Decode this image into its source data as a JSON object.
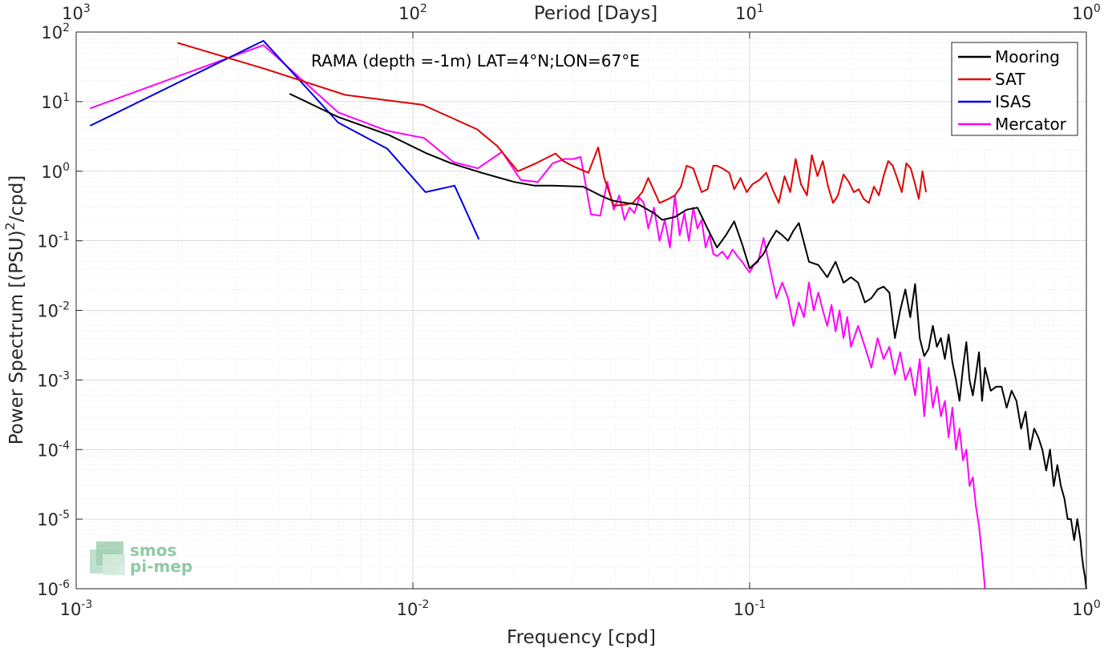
{
  "chart_data": {
    "type": "line",
    "x_scale": "log",
    "y_scale": "log",
    "xlim": [
      0.001,
      1
    ],
    "ylim": [
      1e-06,
      100
    ],
    "xlabel": "Frequency [cpd]",
    "ylabel": "Power Spectrum [(PSU)^2/cpd]",
    "top_xlabel": "Period [Days]",
    "annotation": "RAMA (depth =-1m) LAT=4°N;LON=67°E",
    "grid": true,
    "legend_position": "top-right",
    "x_ticks": [
      0.001,
      0.01,
      0.1,
      1
    ],
    "y_ticks": [
      1e-06,
      1e-05,
      0.0001,
      0.001,
      0.01,
      0.1,
      1,
      10,
      100
    ],
    "top_ticks": [
      1000,
      100,
      10,
      1
    ],
    "series": [
      {
        "name": "Mooring",
        "color": "#000000",
        "x": [
          0.0043,
          0.006,
          0.0085,
          0.011,
          0.013,
          0.016,
          0.02,
          0.023,
          0.026,
          0.032,
          0.036,
          0.039,
          0.043,
          0.047,
          0.052,
          0.055,
          0.06,
          0.065,
          0.07,
          0.075,
          0.08,
          0.085,
          0.09,
          0.095,
          0.1,
          0.105,
          0.11,
          0.115,
          0.12,
          0.125,
          0.13,
          0.135,
          0.14,
          0.15,
          0.16,
          0.17,
          0.18,
          0.19,
          0.2,
          0.21,
          0.22,
          0.23,
          0.24,
          0.25,
          0.26,
          0.27,
          0.28,
          0.29,
          0.3,
          0.31,
          0.32,
          0.33,
          0.34,
          0.35,
          0.36,
          0.37,
          0.38,
          0.39,
          0.4,
          0.41,
          0.42,
          0.43,
          0.44,
          0.45,
          0.46,
          0.47,
          0.48,
          0.49,
          0.5,
          0.52,
          0.54,
          0.56,
          0.58,
          0.6,
          0.62,
          0.64,
          0.66,
          0.68,
          0.7,
          0.72,
          0.74,
          0.76,
          0.78,
          0.8,
          0.82,
          0.84,
          0.86,
          0.88,
          0.9,
          0.92,
          0.94,
          0.96,
          0.97,
          0.98,
          0.99,
          1.0
        ],
        "y": [
          13,
          6,
          3.3,
          1.8,
          1.3,
          0.95,
          0.7,
          0.62,
          0.62,
          0.6,
          0.45,
          0.38,
          0.35,
          0.33,
          0.25,
          0.2,
          0.22,
          0.28,
          0.3,
          0.15,
          0.08,
          0.12,
          0.19,
          0.09,
          0.04,
          0.05,
          0.065,
          0.1,
          0.14,
          0.12,
          0.1,
          0.14,
          0.18,
          0.05,
          0.045,
          0.03,
          0.05,
          0.025,
          0.03,
          0.025,
          0.013,
          0.015,
          0.02,
          0.022,
          0.018,
          0.004,
          0.01,
          0.02,
          0.008,
          0.024,
          0.004,
          0.0022,
          0.0028,
          0.006,
          0.003,
          0.004,
          0.002,
          0.0045,
          0.0018,
          0.001,
          0.0005,
          0.0015,
          0.0035,
          0.001,
          0.0006,
          0.0012,
          0.0025,
          0.0005,
          0.0015,
          0.0007,
          0.0008,
          0.0008,
          0.0004,
          0.0007,
          0.0005,
          0.0002,
          0.00035,
          0.0001,
          0.0002,
          0.00015,
          0.0001,
          5e-05,
          0.0001,
          3e-05,
          6e-05,
          3e-05,
          2e-05,
          1e-05,
          1e-05,
          5e-06,
          1e-05,
          5e-06,
          3e-06,
          2e-06,
          1.5e-06,
          1e-06
        ]
      },
      {
        "name": "SAT",
        "color": "#e00000",
        "x": [
          0.002,
          0.0036,
          0.0063,
          0.0107,
          0.0155,
          0.0178,
          0.0205,
          0.0232,
          0.0265,
          0.028,
          0.0297,
          0.0332,
          0.0355,
          0.037,
          0.0395,
          0.0425,
          0.045,
          0.048,
          0.05,
          0.054,
          0.0575,
          0.06,
          0.0625,
          0.065,
          0.068,
          0.072,
          0.075,
          0.078,
          0.08,
          0.083,
          0.087,
          0.09,
          0.094,
          0.098,
          0.102,
          0.107,
          0.112,
          0.117,
          0.122,
          0.127,
          0.132,
          0.137,
          0.142,
          0.148,
          0.153,
          0.159,
          0.165,
          0.171,
          0.177,
          0.183,
          0.19,
          0.197,
          0.204,
          0.211,
          0.218,
          0.226,
          0.234,
          0.242,
          0.25,
          0.258,
          0.266,
          0.274,
          0.283,
          0.292,
          0.301,
          0.31,
          0.318,
          0.326,
          0.334
        ],
        "y": [
          70,
          30,
          12.5,
          9,
          4,
          2.3,
          1,
          1.3,
          1.8,
          1.4,
          1.2,
          0.95,
          2.2,
          0.8,
          0.32,
          0.33,
          0.35,
          0.5,
          0.8,
          0.35,
          0.4,
          0.45,
          0.6,
          1.2,
          1.1,
          0.5,
          0.55,
          1.2,
          1.2,
          1.1,
          0.95,
          0.55,
          0.8,
          0.5,
          0.65,
          0.75,
          0.95,
          0.55,
          0.35,
          0.85,
          0.5,
          1.5,
          0.65,
          0.45,
          1.7,
          0.85,
          1.4,
          0.6,
          0.35,
          0.45,
          0.9,
          0.7,
          0.5,
          0.55,
          0.4,
          0.35,
          0.6,
          0.45,
          0.85,
          1.4,
          1.2,
          0.8,
          0.5,
          1.3,
          1.1,
          0.65,
          0.4,
          1.0,
          0.5
        ]
      },
      {
        "name": "ISAS",
        "color": "#0000e6",
        "x": [
          0.0011,
          0.0036,
          0.006,
          0.0084,
          0.0109,
          0.0133,
          0.0157
        ],
        "y": [
          4.5,
          75,
          5,
          2.1,
          0.5,
          0.62,
          0.105
        ]
      },
      {
        "name": "Mercator",
        "color": "#ff00ff",
        "x": [
          0.0011,
          0.0036,
          0.006,
          0.0084,
          0.0108,
          0.0132,
          0.0156,
          0.0184,
          0.0209,
          0.0235,
          0.026,
          0.0282,
          0.03,
          0.0315,
          0.0338,
          0.036,
          0.0378,
          0.0395,
          0.041,
          0.0425,
          0.044,
          0.0455,
          0.047,
          0.0485,
          0.05,
          0.052,
          0.054,
          0.056,
          0.058,
          0.06,
          0.062,
          0.064,
          0.066,
          0.068,
          0.07,
          0.072,
          0.074,
          0.076,
          0.078,
          0.08,
          0.083,
          0.086,
          0.089,
          0.092,
          0.095,
          0.098,
          0.1,
          0.103,
          0.106,
          0.11,
          0.115,
          0.12,
          0.125,
          0.13,
          0.135,
          0.14,
          0.145,
          0.15,
          0.155,
          0.16,
          0.165,
          0.17,
          0.175,
          0.18,
          0.185,
          0.19,
          0.195,
          0.2,
          0.21,
          0.22,
          0.23,
          0.24,
          0.25,
          0.26,
          0.27,
          0.28,
          0.29,
          0.3,
          0.31,
          0.32,
          0.33,
          0.34,
          0.35,
          0.36,
          0.37,
          0.38,
          0.39,
          0.4,
          0.41,
          0.42,
          0.43,
          0.44,
          0.45,
          0.46,
          0.47,
          0.48,
          0.49,
          0.5
        ],
        "y": [
          8,
          65,
          7,
          3.8,
          3,
          1.35,
          1.1,
          1.9,
          0.75,
          0.7,
          1.3,
          1.5,
          1.5,
          1.6,
          0.24,
          0.23,
          0.7,
          0.28,
          0.45,
          0.2,
          0.3,
          0.25,
          0.42,
          0.35,
          0.15,
          0.3,
          0.1,
          0.2,
          0.08,
          0.45,
          0.12,
          0.25,
          0.1,
          0.3,
          0.15,
          0.2,
          0.08,
          0.12,
          0.065,
          0.06,
          0.07,
          0.055,
          0.075,
          0.06,
          0.05,
          0.04,
          0.035,
          0.045,
          0.05,
          0.11,
          0.04,
          0.015,
          0.025,
          0.015,
          0.006,
          0.013,
          0.008,
          0.025,
          0.01,
          0.018,
          0.01,
          0.006,
          0.012,
          0.005,
          0.01,
          0.004,
          0.008,
          0.003,
          0.006,
          0.003,
          0.0015,
          0.004,
          0.002,
          0.003,
          0.0012,
          0.0025,
          0.001,
          0.0015,
          0.0006,
          0.002,
          0.0003,
          0.0015,
          0.0004,
          0.0008,
          0.0003,
          0.0005,
          0.00015,
          0.0004,
          0.0001,
          0.0002,
          7e-05,
          0.0001,
          3e-05,
          4e-05,
          1.5e-05,
          8e-06,
          3e-06,
          1e-06
        ]
      }
    ]
  },
  "logo": {
    "line1": "smos",
    "line2": "pi-mep"
  }
}
